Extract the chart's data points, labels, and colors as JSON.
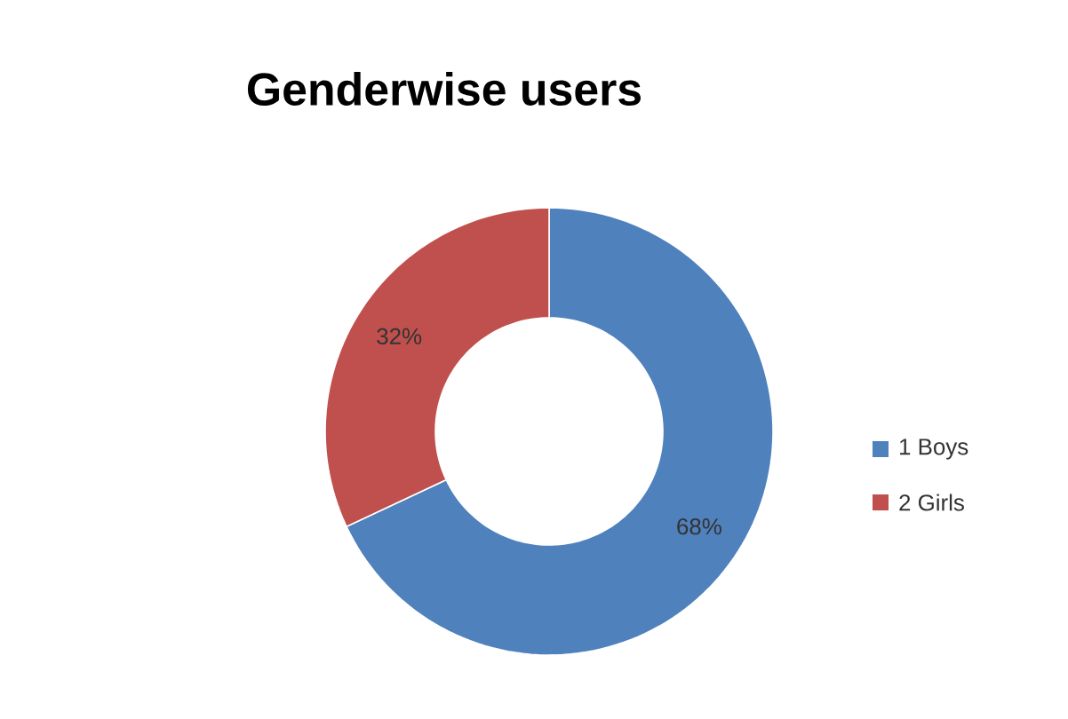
{
  "chart_data": {
    "type": "donut",
    "title": "Genderwise users",
    "categories": [
      "1 Boys",
      "2 Girls"
    ],
    "values": [
      68,
      32
    ],
    "colors": [
      "#4f81bd",
      "#c0504d"
    ],
    "value_labels": [
      "68%",
      "32%"
    ],
    "legend": "right"
  }
}
